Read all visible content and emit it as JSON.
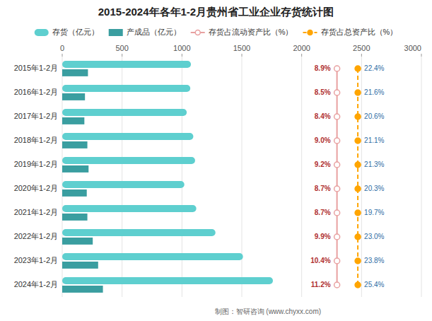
{
  "chart_data": {
    "type": "bar",
    "orientation": "horizontal",
    "title": "2015-2024年各年1-2月贵州省工业企业存货统计图",
    "categories": [
      "2015年1-2月",
      "2016年1-2月",
      "2017年1-2月",
      "2018年1-2月",
      "2019年1-2月",
      "2020年1-2月",
      "2021年1-2月",
      "2022年1-2月",
      "2023年1-2月",
      "2024年1-2月"
    ],
    "series": [
      {
        "name": "存货（亿元）",
        "color": "#5ECFCF",
        "marker": "o",
        "values": [
          1075,
          1070,
          1040,
          1095,
          1110,
          1020,
          1120,
          1280,
          1510,
          1760
        ]
      },
      {
        "name": "产成品（亿元）",
        "color": "#3A9EA0",
        "marker": "s",
        "values": [
          215,
          190,
          185,
          210,
          220,
          205,
          210,
          255,
          300,
          340
        ]
      },
      {
        "name": "存货占流动资产比（%）",
        "type": "line",
        "color": "#E8A0A0",
        "line_style": "solid",
        "marker": "o",
        "data_labels": true,
        "values": [
          8.9,
          8.5,
          8.4,
          9.0,
          9.2,
          8.7,
          8.7,
          9.9,
          10.4,
          11.2
        ],
        "value_labels": [
          "8.9%",
          "8.5%",
          "8.4%",
          "9.0%",
          "9.2%",
          "8.7%",
          "8.7%",
          "9.9%",
          "10.4%",
          "11.2%"
        ]
      },
      {
        "name": "存货占总资产比（%）",
        "type": "line",
        "color": "#FFA500",
        "line_style": "dashed",
        "marker": "o",
        "data_labels": true,
        "values": [
          22.4,
          21.6,
          20.6,
          21.1,
          21.3,
          20.3,
          19.7,
          23.0,
          23.8,
          25.4
        ],
        "value_labels": [
          "22.4%",
          "21.6%",
          "20.6%",
          "21.1%",
          "21.3%",
          "20.3%",
          "19.7%",
          "23.0%",
          "23.8%",
          "25.4%"
        ]
      }
    ],
    "xlim": [
      0,
      3000
    ],
    "xticks": [
      0,
      500,
      1000,
      1500,
      2000,
      2500,
      3000
    ],
    "grid": true,
    "legend": "top",
    "annotations": [
      "制图：智研咨询  (www.chyxx.com)"
    ]
  }
}
